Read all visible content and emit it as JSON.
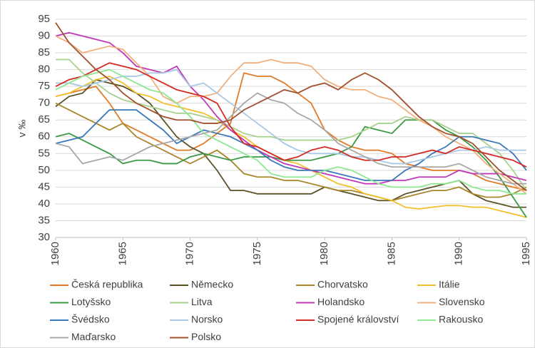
{
  "chart_data": {
    "type": "line",
    "ylabel": "v ‰",
    "x": [
      1960,
      1961,
      1962,
      1963,
      1964,
      1965,
      1966,
      1967,
      1968,
      1969,
      1970,
      1971,
      1972,
      1973,
      1974,
      1975,
      1976,
      1977,
      1978,
      1979,
      1980,
      1981,
      1982,
      1983,
      1984,
      1985,
      1986,
      1987,
      1988,
      1989,
      1990,
      1991,
      1992,
      1993,
      1994,
      1995
    ],
    "xlim": [
      1960,
      1995
    ],
    "xticks": [
      1960,
      1965,
      1970,
      1975,
      1980,
      1985,
      1990,
      1995
    ],
    "ylim": [
      30,
      95
    ],
    "yticks": [
      30,
      35,
      40,
      45,
      50,
      55,
      60,
      65,
      70,
      75,
      80,
      85,
      90,
      95
    ],
    "grid": true,
    "series": [
      {
        "name": "Česká republika",
        "color": "#e07b28",
        "values": [
          72,
          73,
          74,
          75,
          70,
          64,
          62,
          60,
          58,
          56,
          56,
          58,
          61,
          64,
          79,
          78,
          78,
          76,
          73,
          70,
          62,
          59,
          57,
          56,
          56,
          55,
          52,
          51,
          50,
          50,
          50,
          49,
          47,
          46,
          45,
          44
        ]
      },
      {
        "name": "Německo",
        "color": "#5c5226",
        "values": [
          69,
          72,
          73,
          77,
          76,
          75,
          73,
          70,
          65,
          60,
          57,
          55,
          50,
          44,
          44,
          43,
          43,
          43,
          43,
          43,
          45,
          44,
          43,
          42,
          41,
          41,
          43,
          44,
          45,
          46,
          47,
          43,
          41,
          40,
          39,
          39
        ]
      },
      {
        "name": "Chorvatsko",
        "color": "#a8862a",
        "values": [
          70,
          68,
          66,
          64,
          62,
          64,
          60,
          58,
          56,
          54,
          52,
          54,
          56,
          53,
          49,
          48,
          48,
          47,
          47,
          46,
          45,
          44,
          44,
          43,
          42,
          41,
          42,
          43,
          44,
          44,
          45,
          43,
          42,
          42,
          43,
          45
        ]
      },
      {
        "name": "Itálie",
        "color": "#f2c02c",
        "values": [
          72,
          73,
          75,
          77,
          78,
          76,
          73,
          72,
          70,
          69,
          68,
          67,
          65,
          62,
          60,
          57,
          55,
          53,
          52,
          50,
          48,
          46,
          45,
          43,
          42,
          41,
          39,
          38.5,
          39,
          39.5,
          39.5,
          39,
          39,
          38,
          37,
          36
        ]
      },
      {
        "name": "Lotyšsko",
        "color": "#3a9a44",
        "values": [
          60,
          61,
          59,
          57,
          55,
          52,
          53,
          53,
          52,
          52,
          54,
          55,
          54,
          53,
          54,
          54,
          54,
          53,
          53,
          53,
          54,
          55,
          57,
          63,
          62,
          61,
          65,
          65,
          65,
          62,
          60,
          57,
          53,
          48,
          42,
          36
        ]
      },
      {
        "name": "Litva",
        "color": "#a9d18e",
        "values": [
          83,
          83,
          79,
          76,
          73,
          71,
          70,
          69,
          68,
          67,
          67,
          66,
          65,
          63,
          61,
          60,
          60,
          59,
          59,
          59,
          59,
          59,
          60,
          62,
          64,
          64,
          66,
          65,
          65,
          63,
          61,
          61,
          58,
          55,
          50,
          44
        ]
      },
      {
        "name": "Holandsko",
        "color": "#c038b8",
        "values": [
          90,
          91,
          90,
          89,
          88,
          85,
          81,
          80,
          79,
          81,
          75,
          71,
          66,
          62,
          59,
          56,
          54,
          52,
          51,
          50,
          49,
          48,
          47,
          46,
          46,
          47,
          47,
          48,
          48,
          48,
          50,
          49,
          49,
          49,
          48,
          47
        ]
      },
      {
        "name": "Slovensko",
        "color": "#f2b07c",
        "values": [
          90,
          88,
          85,
          86,
          87,
          86,
          82,
          78,
          72,
          70,
          72,
          72,
          73,
          78,
          82,
          82,
          83,
          82,
          82,
          81,
          77,
          75,
          74,
          74,
          72,
          71,
          68,
          65,
          63,
          60,
          58,
          56,
          52,
          49,
          46,
          43
        ]
      },
      {
        "name": "Švédsko",
        "color": "#3a78b8",
        "values": [
          58,
          59,
          60,
          64,
          68,
          68,
          68,
          65,
          62,
          58,
          60,
          62,
          61,
          60,
          58,
          56,
          53,
          51,
          50,
          50,
          50,
          49,
          48,
          47,
          47,
          47,
          50,
          52,
          55,
          57,
          60,
          60,
          59,
          58,
          55,
          50
        ]
      },
      {
        "name": "Norsko",
        "color": "#a8c8e4",
        "values": [
          76,
          76,
          75,
          76,
          77,
          78,
          78,
          79,
          79,
          80,
          75,
          76,
          73,
          70,
          67,
          64,
          61,
          58,
          56,
          55,
          55,
          55,
          54,
          54,
          53,
          52,
          52,
          53,
          54,
          55,
          56,
          56,
          57,
          56,
          56,
          56
        ]
      },
      {
        "name": "Spojené království",
        "color": "#d42a24",
        "values": [
          75,
          77,
          78,
          80,
          82,
          81,
          80,
          78,
          76,
          74,
          73,
          72,
          70,
          63,
          58,
          57,
          55,
          53,
          54,
          56,
          57,
          56,
          54,
          53,
          53,
          54,
          54,
          55,
          56,
          55,
          57,
          56,
          55,
          54,
          53,
          51
        ]
      },
      {
        "name": "Rakousko",
        "color": "#8ee890",
        "values": [
          74,
          76,
          78,
          79,
          80,
          78,
          76,
          74,
          73,
          70,
          66,
          61,
          59,
          57,
          55,
          53,
          49,
          48,
          48,
          48,
          50,
          51,
          50,
          48,
          46,
          45,
          45,
          45,
          46,
          46,
          47,
          45,
          44,
          44,
          43,
          43
        ]
      },
      {
        "name": "Maďarsko",
        "color": "#a8a8a8",
        "values": [
          58,
          57,
          52,
          53,
          54,
          53,
          55,
          57,
          58,
          59,
          60,
          61,
          62,
          66,
          70,
          73,
          71,
          70,
          67,
          65,
          62,
          58,
          56,
          54,
          52,
          51,
          51,
          51,
          51,
          51,
          52,
          50,
          48,
          47,
          46,
          46
        ]
      },
      {
        "name": "Polsko",
        "color": "#a0502c",
        "values": [
          94,
          88,
          84,
          80,
          77,
          73,
          70,
          68,
          66,
          65,
          65,
          64,
          64,
          65,
          68,
          70,
          72,
          74,
          73,
          75,
          76,
          74,
          77,
          79,
          77,
          74,
          70,
          66,
          63,
          61,
          60,
          58,
          54,
          50,
          47,
          44
        ]
      }
    ]
  }
}
